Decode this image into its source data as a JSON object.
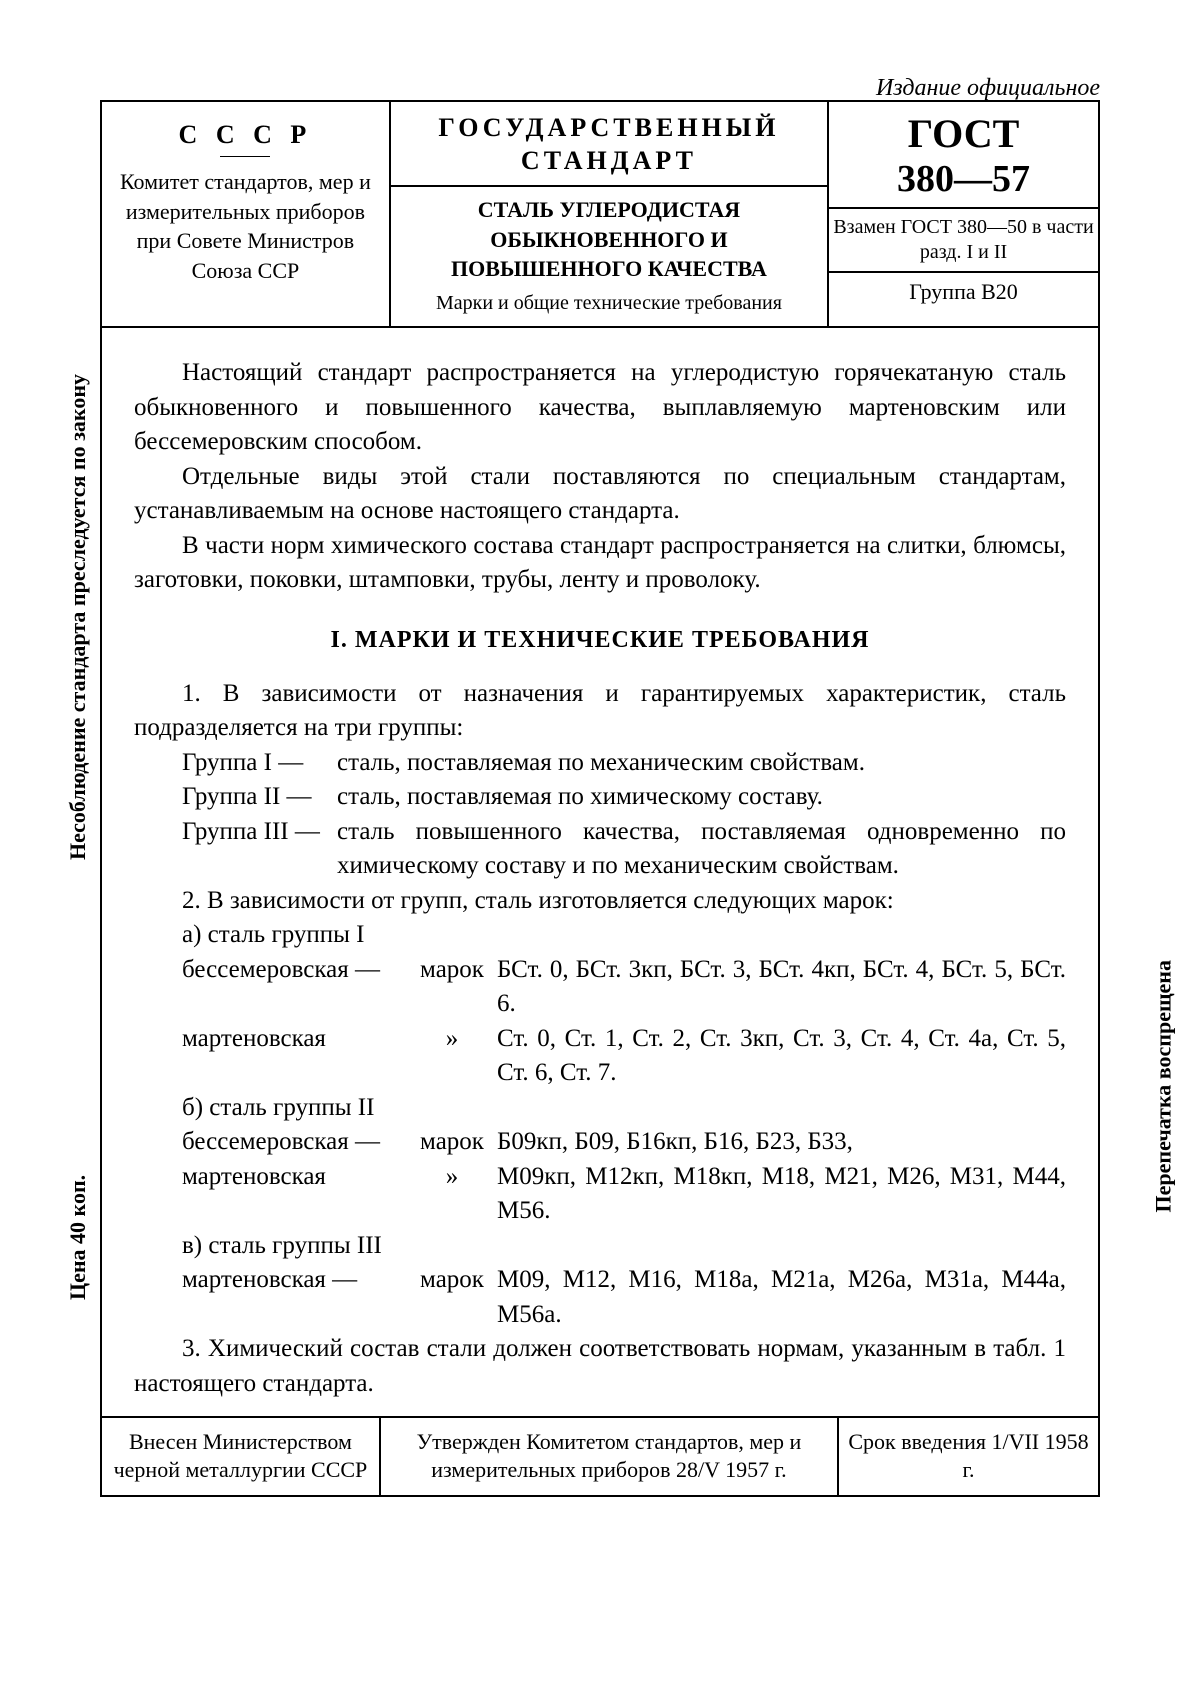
{
  "official": "Издание официальное",
  "header": {
    "col1": {
      "top": "С С С Р",
      "body": "Комитет стандартов, мер и измерительных приборов при Совете Министров Союза ССР"
    },
    "col2": {
      "top": "ГОСУДАРСТВЕННЫЙ СТАНДАРТ",
      "mid": "СТАЛЬ УГЛЕРОДИСТАЯ ОБЫКНОВЕННОГО И ПОВЫШЕННОГО КАЧЕСТВА",
      "bot": "Марки и общие технические требования"
    },
    "col3": {
      "top": "ГОСТ",
      "num": "380—57",
      "mid": "Взамен ГОСТ 380—50 в части разд. I и II",
      "bot": "Группа В20"
    }
  },
  "body": {
    "p1": "Настоящий стандарт распространяется на углеродистую горячекатаную сталь обыкновенного и повышенного качества, выплавляемую мартеновским или бессемеровским способом.",
    "p2": "Отдельные виды этой стали поставляются по специальным стандартам, устанавливаемым на основе настоящего стандарта.",
    "p3": "В части норм химического состава стандарт распространяется на слитки, блюмсы, заготовки, поковки, штамповки, трубы, ленту и проволоку.",
    "section": "I. МАРКИ И ТЕХНИЧЕСКИЕ ТРЕБОВАНИЯ",
    "p4": "1. В зависимости от назначения и гарантируемых характеристик, сталь подразделяется на три группы:",
    "g1l": "Группа   I —",
    "g1d": "сталь, поставляемая по механическим свойствам.",
    "g2l": "Группа  II —",
    "g2d": "сталь, поставляемая по химическому составу.",
    "g3l": "Группа III —",
    "g3d": "сталь повышенного качества, поставляемая одновременно по химическому составу и по механическим свойствам.",
    "p5": "2. В зависимости от групп, сталь изготовляется следующих марок:",
    "p6": "а) сталь группы I",
    "r1a": "бессемеровская —",
    "r1b": "марок",
    "r1c": "БСт. 0, БСт. 3кп, БСт. 3, БСт. 4кп, БСт. 4, БСт. 5, БСт. 6.",
    "r2a": "мартеновская",
    "r2b": "»",
    "r2c": "Ст. 0, Ст. 1, Ст. 2, Ст. 3кп, Ст. 3, Ст. 4, Ст. 4а, Ст. 5, Ст. 6, Ст. 7.",
    "p7": "б) сталь группы II",
    "r3a": "бессемеровская —",
    "r3b": "марок",
    "r3c": "Б09кп, Б09, Б16кп, Б16, Б23, Б33,",
    "r4a": "мартеновская",
    "r4b": "»",
    "r4c": "М09кп, М12кп, М18кп, М18, М21, М26, М31, М44, М56.",
    "p8": "в) сталь группы III",
    "r5a": "мартеновская —",
    "r5b": "марок",
    "r5c": "М09, М12, М16, М18а, М21а, М26а, М31а, М44а, М56а.",
    "p9": "3. Химический состав стали должен соответствовать нормам, указанным в табл. 1 настоящего стандарта."
  },
  "footer": {
    "c1": "Внесен Министерством черной металлургии СССР",
    "c2": "Утвержден Комитетом стандартов, мер и измерительных приборов 28/V 1957 г.",
    "c3": "Срок введения 1/VII 1958 г."
  },
  "side": {
    "left1": "Несоблюдение стандарта преследуется по закону",
    "left2": "Цена 40 коп.",
    "right": "Перепечатка воспрещена"
  }
}
